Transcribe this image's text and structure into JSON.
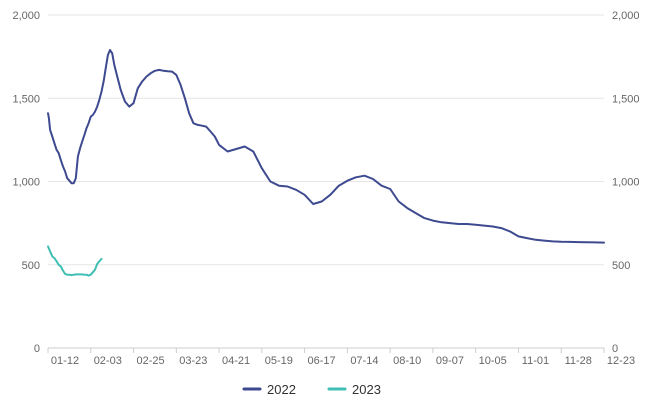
{
  "chart_data": {
    "type": "line",
    "x_ticks": [
      "01-12",
      "02-03",
      "02-25",
      "03-23",
      "04-21",
      "05-19",
      "06-17",
      "07-14",
      "08-10",
      "09-07",
      "10-05",
      "11-01",
      "11-28",
      "12-23"
    ],
    "y_ticks": [
      "0",
      "500",
      "1,000",
      "1,500",
      "2,000"
    ],
    "ylim": [
      0,
      2000
    ],
    "grid": true,
    "legend_position": "bottom",
    "series": [
      {
        "name": "2022",
        "color": "#3d4a8f",
        "x": [
          0,
          0.02,
          0.05,
          0.1,
          0.15,
          0.2,
          0.25,
          0.3,
          0.35,
          0.4,
          0.45,
          0.5,
          0.55,
          0.6,
          0.65,
          0.7,
          0.75,
          0.8,
          0.85,
          0.9,
          0.95,
          1,
          1.05,
          1.1,
          1.15,
          1.2,
          1.25,
          1.3,
          1.35,
          1.4,
          1.45,
          1.5,
          1.55,
          1.6,
          1.7,
          1.8,
          1.9,
          2,
          2.1,
          2.2,
          2.3,
          2.4,
          2.5,
          2.6,
          2.7,
          2.8,
          2.9,
          3,
          3.1,
          3.2,
          3.3,
          3.4,
          3.5,
          3.6,
          3.7,
          3.8,
          3.9,
          4,
          4.2,
          4.4,
          4.6,
          4.8,
          5,
          5.2,
          5.4,
          5.6,
          5.8,
          6,
          6.2,
          6.4,
          6.6,
          6.8,
          7,
          7.2,
          7.4,
          7.6,
          7.8,
          8,
          8.2,
          8.4,
          8.6,
          8.8,
          9,
          9.2,
          9.4,
          9.6,
          9.8,
          10,
          10.2,
          10.4,
          10.6,
          10.8,
          11,
          11.2,
          11.4,
          11.6,
          11.8,
          12,
          12.2,
          12.4,
          12.6,
          12.8,
          13
        ],
        "y": [
          1410,
          1380,
          1310,
          1270,
          1230,
          1190,
          1170,
          1130,
          1090,
          1060,
          1020,
          1005,
          990,
          990,
          1020,
          1150,
          1200,
          1240,
          1280,
          1320,
          1350,
          1390,
          1400,
          1420,
          1450,
          1490,
          1540,
          1600,
          1680,
          1760,
          1790,
          1770,
          1700,
          1650,
          1550,
          1480,
          1450,
          1470,
          1560,
          1600,
          1630,
          1650,
          1665,
          1670,
          1665,
          1662,
          1660,
          1640,
          1580,
          1500,
          1410,
          1350,
          1340,
          1335,
          1330,
          1300,
          1270,
          1220,
          1180,
          1195,
          1210,
          1180,
          1080,
          1000,
          975,
          970,
          950,
          920,
          865,
          880,
          920,
          975,
          1005,
          1025,
          1035,
          1015,
          975,
          955,
          880,
          840,
          810,
          780,
          765,
          755,
          750,
          745,
          745,
          740,
          735,
          730,
          720,
          700,
          670,
          660,
          650,
          645,
          640,
          638,
          637,
          636,
          635,
          634,
          633
        ],
        "x_note": ""
      },
      {
        "name": "2023",
        "color": "#3fbfb3",
        "x": [
          0,
          0.05,
          0.1,
          0.15,
          0.2,
          0.25,
          0.3,
          0.35,
          0.4,
          0.45,
          0.5,
          0.55,
          0.6,
          0.65,
          0.7,
          0.75,
          0.8,
          0.85,
          0.9,
          0.95,
          1,
          1.05,
          1.1,
          1.15,
          1.2,
          1.25
        ],
        "y": [
          610,
          580,
          550,
          540,
          520,
          500,
          490,
          465,
          445,
          440,
          440,
          438,
          440,
          442,
          442,
          442,
          442,
          440,
          440,
          435,
          440,
          455,
          470,
          505,
          520,
          535
        ]
      }
    ],
    "legend": [
      "2022",
      "2023"
    ]
  }
}
